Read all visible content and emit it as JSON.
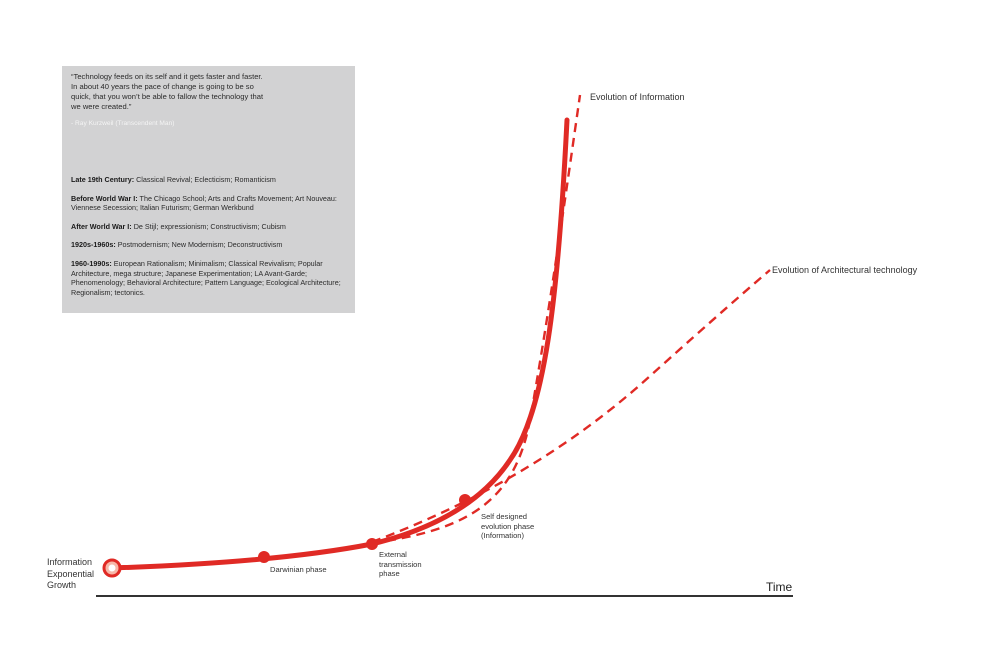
{
  "quote_box": {
    "quote": "“Technology feeds on its self and it gets faster and faster.\nIn about 40 years the pace of change is going to be so\nquick, that you won’t be able to fallow the technology that\nwe were created.”",
    "attribution": "- Ray Kurzweil (Transcendent Man)",
    "eras": [
      {
        "period": "Late 19th Century:",
        "movements": " Classical Revival; Eclecticism; Romanticism"
      },
      {
        "period": "Before World War I:",
        "movements": " The Chicago School; Arts and Crafts Movement; Art Nouveau: Viennese Secession; Italian Futurism; German Werkbund"
      },
      {
        "period": "After World War I:",
        "movements": " De Stijl; expressionism; Constructivism; Cubism"
      },
      {
        "period": "1920s-1960s:",
        "movements": " Postmodernism; New Modernism; Deconstructivism"
      },
      {
        "period": "1960-1990s:",
        "movements": " European Rationalism; Minimalism; Classical Revivalism; Popular Architecture, mega structure;  Japanese Experimentation; LA Avant-Garde; Phenomenology; Behavioral Architecture; Pattern Language; Ecological Architecture; Regionalism; tectonics."
      }
    ]
  },
  "curves": {
    "information": "Evolution of Information",
    "architectural": "Evolution of Architectural technology"
  },
  "origin_label": "Information\nExponential\nGrowth",
  "phases": {
    "darwinian": "Darwinian phase",
    "external": "External\ntransmission\nphase",
    "self_designed": "Self designed\nevolution phase\n(Information)"
  },
  "axis": {
    "x_label": "Time"
  },
  "colors": {
    "curve": "#e02a25",
    "axis": "#333333",
    "box": "#d2d2d3",
    "origin_ring": "#f7b7a8"
  }
}
